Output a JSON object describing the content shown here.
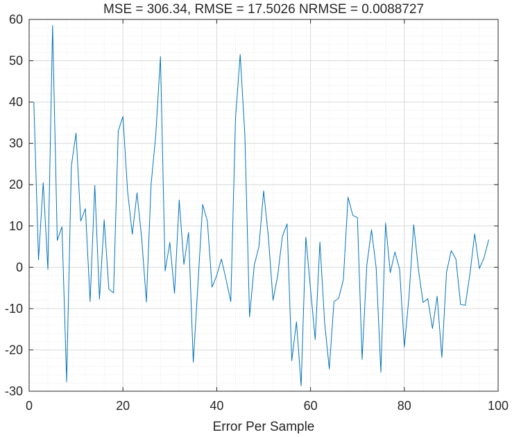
{
  "chart_data": {
    "type": "line",
    "title": "MSE = 306.34, RMSE = 17.5026 NRMSE = 0.0088727",
    "xlabel": "Error Per Sample",
    "ylabel": "",
    "xlim": [
      0,
      100
    ],
    "ylim": [
      -30,
      60
    ],
    "xticks": [
      0,
      20,
      40,
      60,
      80,
      100
    ],
    "yticks": [
      -30,
      -20,
      -10,
      0,
      10,
      20,
      30,
      40,
      50,
      60
    ],
    "grid": true,
    "minor_grid": true,
    "series_color": "#0072BD",
    "x": [
      1,
      2,
      3,
      4,
      5,
      6,
      7,
      8,
      9,
      10,
      11,
      12,
      13,
      14,
      15,
      16,
      17,
      18,
      19,
      20,
      21,
      22,
      23,
      24,
      25,
      26,
      27,
      28,
      29,
      30,
      31,
      32,
      33,
      34,
      35,
      36,
      37,
      38,
      39,
      40,
      41,
      42,
      43,
      44,
      45,
      46,
      47,
      48,
      49,
      50,
      51,
      52,
      53,
      54,
      55,
      56,
      57,
      58,
      59,
      60,
      61,
      62,
      63,
      64,
      65,
      66,
      67,
      68,
      69,
      70,
      71,
      72,
      73,
      74,
      75,
      76,
      77,
      78,
      79,
      80,
      81,
      82,
      83,
      84,
      85,
      86,
      87,
      88,
      89,
      90,
      91,
      92,
      93,
      94,
      95,
      96,
      97,
      98
    ],
    "y": [
      40,
      1.8,
      20.5,
      -0.5,
      58.5,
      6.5,
      9.8,
      -27.7,
      24.5,
      32.5,
      11.2,
      14.2,
      -8.3,
      19.8,
      -7.7,
      11.5,
      -5.3,
      -6.2,
      33,
      36.5,
      18.3,
      8,
      18,
      7,
      -8.4,
      20,
      32,
      51,
      -0.9,
      6,
      -6.3,
      16.3,
      0.7,
      8.4,
      -23,
      -4,
      15.2,
      11.2,
      -4.8,
      -2,
      2,
      -3,
      -8.3,
      36,
      51.5,
      32,
      -12,
      0.5,
      5,
      18.5,
      7.5,
      -8,
      -2,
      7.5,
      10.5,
      -22.6,
      -13.2,
      -28.7,
      7.3,
      -5.3,
      -17.5,
      6.1,
      -13.3,
      -24.6,
      -8.3,
      -7.5,
      -3,
      17,
      12.6,
      12,
      -22.3,
      0.5,
      9.1,
      -0.2,
      -25.4,
      10.7,
      -1.3,
      3.7,
      -0.5,
      -19.3,
      -7,
      10.3,
      -0.5,
      -8.5,
      -7.6,
      -14.8,
      -7,
      -21.8,
      -1.2,
      4,
      2,
      -9,
      -9.2,
      -1.5,
      8.1,
      -0.3,
      2.3,
      6.7
    ]
  }
}
